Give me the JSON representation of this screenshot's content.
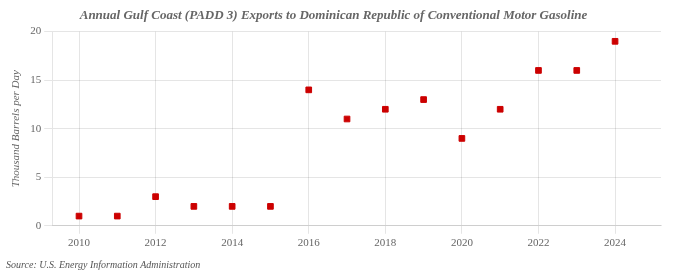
{
  "chart_data": {
    "type": "scatter",
    "title": "Annual Gulf Coast (PADD 3) Exports to Dominican Republic of Conventional Motor Gasoline",
    "ylabel": "Thousand Barrels per Day",
    "source": "Source: U.S. Energy Information Administration",
    "x": [
      2010,
      2011,
      2012,
      2013,
      2014,
      2015,
      2016,
      2017,
      2018,
      2019,
      2020,
      2021,
      2022,
      2023,
      2024
    ],
    "values": [
      1,
      1,
      3,
      2,
      2,
      2,
      14,
      11,
      12,
      13,
      9,
      12,
      16,
      16,
      19
    ],
    "color": "#cc0000",
    "marker": "square",
    "xlim": [
      2009.3,
      2025.2
    ],
    "ylim": [
      0,
      20
    ],
    "xticks": [
      2010,
      2012,
      2014,
      2016,
      2018,
      2020,
      2022,
      2024
    ],
    "yticks": [
      0,
      5,
      10,
      15,
      20
    ],
    "grid": true
  }
}
